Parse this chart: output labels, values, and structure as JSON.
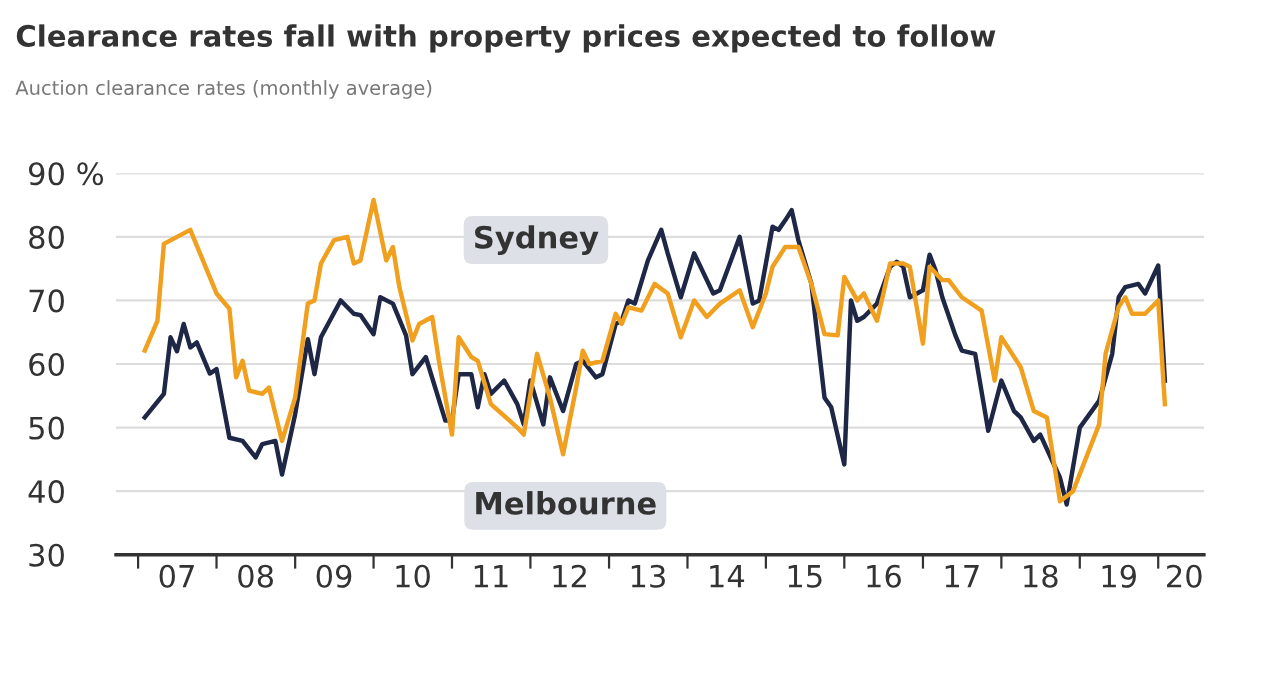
{
  "chart_data": {
    "type": "line",
    "title": "Clearance rates fall with property prices expected to follow",
    "subtitle": "Auction clearance rates (monthly average)",
    "series": [
      {
        "color": "#1e2745",
        "x": [
          "2007-02",
          "2007-05",
          "2007-06",
          "2007-07",
          "2007-08",
          "2007-09",
          "2007-10",
          "2007-12",
          "2008-01",
          "2008-03",
          "2008-05",
          "2008-07",
          "2008-08",
          "2008-10",
          "2008-11",
          "2009-01",
          "2009-03",
          "2009-04",
          "2009-05",
          "2009-08",
          "2009-10",
          "2009-11",
          "2010-01",
          "2010-02",
          "2010-04",
          "2010-06",
          "2010-07",
          "2010-09",
          "2010-12",
          "2011-01",
          "2011-02",
          "2011-04",
          "2011-05",
          "2011-06",
          "2011-07",
          "2011-09",
          "2011-11",
          "2011-12",
          "2012-01",
          "2012-03",
          "2012-04",
          "2012-06",
          "2012-08",
          "2012-09",
          "2012-11",
          "2012-12",
          "2013-02",
          "2013-03",
          "2013-04",
          "2013-05",
          "2013-07",
          "2013-09",
          "2013-10",
          "2013-12",
          "2014-02",
          "2014-05",
          "2014-06",
          "2014-09",
          "2014-11",
          "2014-12",
          "2015-02",
          "2015-03",
          "2015-04",
          "2015-05",
          "2015-06",
          "2015-08",
          "2015-10",
          "2015-11",
          "2016-01",
          "2016-02",
          "2016-03",
          "2016-04",
          "2016-06",
          "2016-08",
          "2016-09",
          "2016-10",
          "2016-11",
          "2017-01",
          "2017-02",
          "2017-03",
          "2017-04",
          "2017-06",
          "2017-07",
          "2017-09",
          "2017-11",
          "2018-01",
          "2018-03",
          "2018-04",
          "2018-06",
          "2018-07",
          "2018-10",
          "2018-11",
          "2019-01",
          "2019-04",
          "2019-06",
          "2019-07",
          "2019-08",
          "2019-10",
          "2019-11",
          "2020-01",
          "2020-02"
        ],
        "values": [
          51.6,
          55.3,
          64.2,
          62,
          66.3,
          62.6,
          63.4,
          58.5,
          59.2,
          48.4,
          47.9,
          45.3,
          47.4,
          47.9,
          42.6,
          52.1,
          63.9,
          58.4,
          64.2,
          70,
          67.9,
          67.7,
          64.7,
          70.5,
          69.5,
          64.5,
          58.4,
          61.1,
          51.1,
          51.1,
          58.4,
          58.4,
          53.2,
          58.4,
          55.3,
          57.4,
          53.7,
          50.5,
          57.4,
          50.5,
          57.9,
          52.6,
          60,
          60.5,
          57.9,
          58.4,
          66.3,
          66.8,
          70,
          69.5,
          76.3,
          81.1,
          77.4,
          70.5,
          77.4,
          71.1,
          71.6,
          80,
          69.5,
          70,
          81.6,
          81.1,
          82.6,
          84.2,
          79.5,
          72.6,
          54.7,
          53.2,
          44.2,
          70,
          66.8,
          67.4,
          69.5,
          75.3,
          76.1,
          75.3,
          70.5,
          71.6,
          77.2,
          74.7,
          70.5,
          64.5,
          62.1,
          61.6,
          49.5,
          57.4,
          52.6,
          51.6,
          47.9,
          48.9,
          42.1,
          37.9,
          50,
          54.2,
          61.6,
          70.5,
          72.1,
          72.6,
          71.1,
          75.5,
          57.4
        ]
      },
      {
        "color": "#f0a01e",
        "x": [
          "2007-02",
          "2007-04",
          "2007-05",
          "2007-07",
          "2007-09",
          "2008-01",
          "2008-03",
          "2008-04",
          "2008-05",
          "2008-06",
          "2008-08",
          "2008-09",
          "2008-11",
          "2009-01",
          "2009-03",
          "2009-04",
          "2009-05",
          "2009-07",
          "2009-09",
          "2009-10",
          "2009-11",
          "2010-01",
          "2010-03",
          "2010-04",
          "2010-05",
          "2010-07",
          "2010-08",
          "2010-10",
          "2010-11",
          "2011-01",
          "2011-02",
          "2011-04",
          "2011-05",
          "2011-07",
          "2011-11",
          "2011-12",
          "2012-02",
          "2012-04",
          "2012-06",
          "2012-08",
          "2012-09",
          "2012-10",
          "2012-12",
          "2013-02",
          "2013-03",
          "2013-04",
          "2013-06",
          "2013-08",
          "2013-10",
          "2013-12",
          "2014-02",
          "2014-04",
          "2014-06",
          "2014-09",
          "2014-11",
          "2015-01",
          "2015-02",
          "2015-04",
          "2015-06",
          "2015-08",
          "2015-10",
          "2015-12",
          "2016-01",
          "2016-03",
          "2016-04",
          "2016-06",
          "2016-07",
          "2016-08",
          "2016-10",
          "2016-11",
          "2017-01",
          "2017-02",
          "2017-04",
          "2017-05",
          "2017-07",
          "2017-10",
          "2017-12",
          "2018-01",
          "2018-04",
          "2018-06",
          "2018-08",
          "2018-10",
          "2018-12",
          "2019-04",
          "2019-05",
          "2019-07",
          "2019-08",
          "2019-09",
          "2019-11",
          "2020-01",
          "2020-02"
        ],
        "values": [
          62.1,
          66.8,
          78.9,
          80,
          81.1,
          71.1,
          68.7,
          57.9,
          60.5,
          55.8,
          55.3,
          56.3,
          47.9,
          54.7,
          69.5,
          70,
          75.8,
          79.5,
          80,
          75.8,
          76.3,
          85.8,
          76.3,
          78.4,
          72.1,
          63.7,
          66.3,
          67.4,
          60.5,
          48.9,
          64.2,
          61.1,
          60.5,
          53.7,
          50,
          48.9,
          61.6,
          54.7,
          45.8,
          56.3,
          62.1,
          60,
          60.5,
          67.9,
          66.3,
          68.9,
          68.4,
          72.6,
          71.1,
          64.2,
          70,
          67.4,
          69.5,
          71.6,
          65.8,
          71.1,
          75.3,
          78.4,
          78.4,
          72.6,
          64.7,
          64.5,
          73.7,
          70,
          71.1,
          66.8,
          71.1,
          75.8,
          75.8,
          75.3,
          63.2,
          75.3,
          73.2,
          73.2,
          70.5,
          68.4,
          57.4,
          64.2,
          59.5,
          52.6,
          51.6,
          38.4,
          40,
          50.5,
          61.6,
          69,
          70.5,
          67.9,
          67.9,
          70,
          53.7
        ]
      }
    ],
    "annotations": [
      "Sydney",
      "Melbourne"
    ],
    "xlim": [
      "2006-09-20",
      "2020-08-01"
    ],
    "xticks": [
      {
        "value": "2007-01-01",
        "label": null
      },
      {
        "value": "2007-07-01",
        "label": "07"
      },
      {
        "value": "2008-01-01",
        "label": null
      },
      {
        "value": "2008-07-01",
        "label": "08"
      },
      {
        "value": "2009-01-01",
        "label": null
      },
      {
        "value": "2009-07-01",
        "label": "09"
      },
      {
        "value": "2010-01-01",
        "label": null
      },
      {
        "value": "2010-07-01",
        "label": "10"
      },
      {
        "value": "2011-01-01",
        "label": null
      },
      {
        "value": "2011-07-01",
        "label": "11"
      },
      {
        "value": "2012-01-01",
        "label": null
      },
      {
        "value": "2012-07-01",
        "label": "12"
      },
      {
        "value": "2013-01-01",
        "label": null
      },
      {
        "value": "2013-07-01",
        "label": "13"
      },
      {
        "value": "2014-01-01",
        "label": null
      },
      {
        "value": "2014-07-01",
        "label": "14"
      },
      {
        "value": "2015-01-01",
        "label": null
      },
      {
        "value": "2015-07-01",
        "label": "15"
      },
      {
        "value": "2016-01-01",
        "label": null
      },
      {
        "value": "2016-07-01",
        "label": "16"
      },
      {
        "value": "2017-01-01",
        "label": null
      },
      {
        "value": "2017-07-01",
        "label": "17"
      },
      {
        "value": "2018-01-01",
        "label": null
      },
      {
        "value": "2018-07-01",
        "label": "18"
      },
      {
        "value": "2019-01-01",
        "label": null
      },
      {
        "value": "2019-07-01",
        "label": "19"
      },
      {
        "value": "2020-01-01",
        "label": null
      },
      {
        "value": "2020-05-01",
        "label": "20"
      }
    ],
    "ylim": [
      30,
      90
    ],
    "yticks": [
      30,
      40,
      50,
      60,
      70,
      80,
      {
        "value": 90,
        "label": "90 %"
      }
    ],
    "grid": "y",
    "marker": "none",
    "line_style": "solid"
  }
}
